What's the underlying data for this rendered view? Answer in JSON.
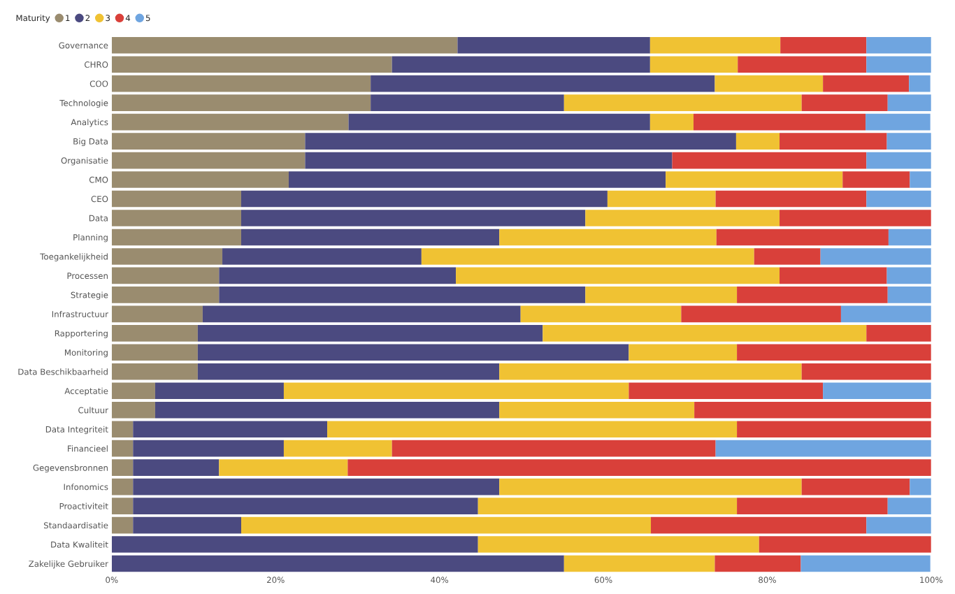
{
  "chart_data": {
    "type": "bar",
    "orientation": "horizontal",
    "stacked": true,
    "legend_title": "Maturity",
    "legend": "top left",
    "grid": false,
    "categories": [
      "Governance",
      "CHRO",
      "COO",
      "Technologie",
      "Analytics",
      "Big Data",
      "Organisatie",
      "CMO",
      "CEO",
      "Data",
      "Planning",
      "Toegankelijkheid",
      "Processen",
      "Strategie",
      "Infrastructuur",
      "Rapportering",
      "Monitoring",
      "Data Beschikbaarheid",
      "Acceptatie",
      "Cultuur",
      "Data Integriteit",
      "Financieel",
      "Gegevensbronnen",
      "Infonomics",
      "Proactiviteit",
      "Standaardisatie",
      "Data Kwaliteit",
      "Zakelijke Gebruiker"
    ],
    "xlim": [
      0,
      100
    ],
    "xticks": [
      {
        "value": 0,
        "label": "0%"
      },
      {
        "value": 20,
        "label": "20%"
      },
      {
        "value": 40,
        "label": "40%"
      },
      {
        "value": 60,
        "label": "60%"
      },
      {
        "value": 80,
        "label": "80%"
      },
      {
        "value": 100,
        "label": "100%"
      }
    ],
    "series": [
      {
        "name": "1",
        "color": "#9a8c6f",
        "values": [
          42.2,
          34.2,
          31.6,
          31.6,
          28.9,
          23.6,
          23.6,
          21.6,
          15.8,
          15.8,
          15.8,
          13.5,
          13.1,
          13.1,
          11.1,
          10.5,
          10.5,
          10.5,
          5.3,
          5.3,
          2.6,
          2.6,
          2.6,
          2.6,
          2.6,
          2.6,
          0,
          0
        ]
      },
      {
        "name": "2",
        "color": "#4b4a80",
        "values": [
          23.5,
          31.5,
          42.0,
          23.6,
          36.8,
          52.6,
          44.8,
          46.0,
          44.7,
          42.0,
          31.5,
          24.3,
          28.9,
          44.7,
          38.8,
          42.1,
          52.6,
          36.8,
          15.7,
          42.0,
          23.7,
          18.4,
          10.5,
          44.7,
          42.1,
          13.2,
          44.7,
          55.2
        ]
      },
      {
        "name": "3",
        "color": "#f0c233",
        "values": [
          15.9,
          10.7,
          13.2,
          29.0,
          5.3,
          5.3,
          0,
          21.6,
          13.2,
          23.7,
          26.5,
          40.6,
          39.5,
          18.5,
          19.6,
          39.5,
          13.2,
          36.9,
          42.1,
          23.8,
          50.0,
          13.2,
          15.7,
          36.9,
          31.6,
          50.0,
          34.3,
          18.4
        ]
      },
      {
        "name": "4",
        "color": "#d9403a",
        "values": [
          10.5,
          15.7,
          10.5,
          10.5,
          21.0,
          13.1,
          23.7,
          8.2,
          18.4,
          18.5,
          21.0,
          8.1,
          13.1,
          18.4,
          19.5,
          7.9,
          23.7,
          15.8,
          23.7,
          28.9,
          23.7,
          39.5,
          71.2,
          13.2,
          18.4,
          26.3,
          21.0,
          10.5
        ]
      },
      {
        "name": "5",
        "color": "#6fa5e0",
        "values": [
          7.9,
          7.9,
          2.6,
          5.3,
          7.9,
          5.4,
          7.9,
          2.6,
          7.9,
          0,
          5.4,
          13.5,
          5.4,
          5.3,
          11.0,
          0,
          0,
          0,
          13.2,
          0,
          0,
          26.3,
          0,
          2.6,
          5.3,
          7.9,
          0,
          15.8
        ]
      }
    ]
  }
}
